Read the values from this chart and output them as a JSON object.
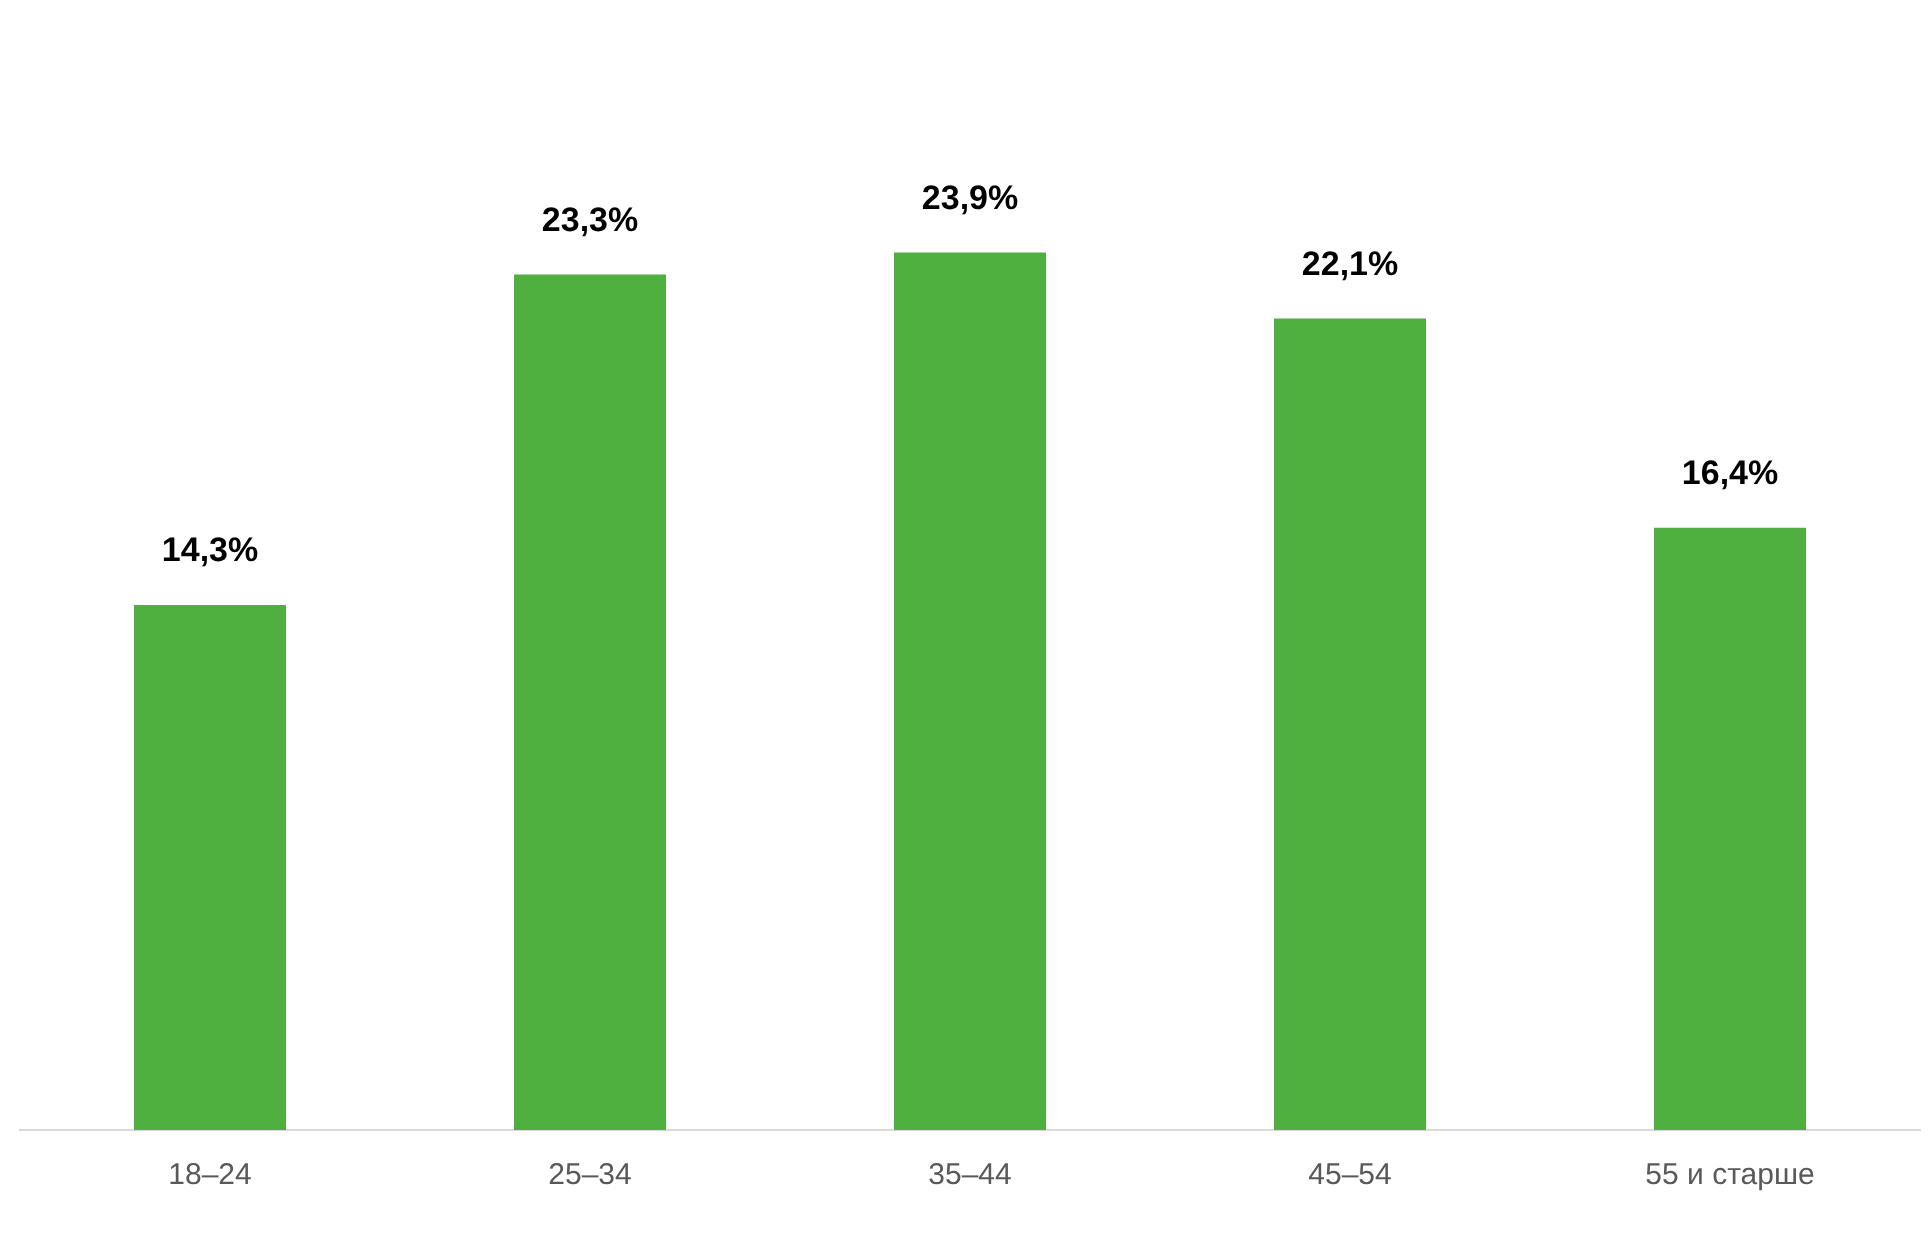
{
  "chart_data": {
    "type": "bar",
    "categories": [
      "18–24",
      "25–34",
      "35–44",
      "45–54",
      "55 и старше"
    ],
    "values": [
      14.3,
      23.3,
      23.9,
      22.1,
      16.4
    ],
    "value_labels": [
      "14,3%",
      "23,3%",
      "23,9%",
      "22,1%",
      "16,4%"
    ],
    "color": "#4fb03f",
    "grid": false,
    "legend": false
  }
}
